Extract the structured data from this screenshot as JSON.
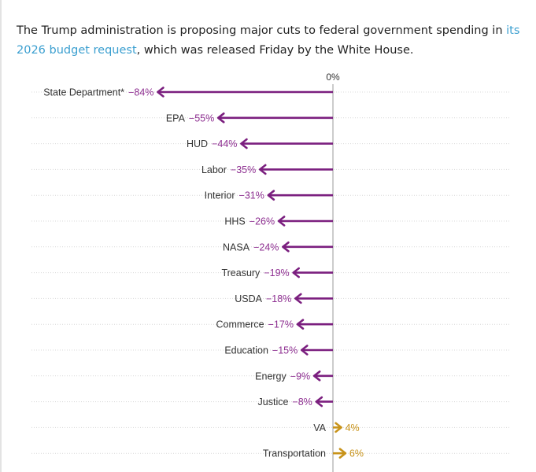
{
  "intro": {
    "text_before": "The Trump administration is proposing major cuts to federal government spending in ",
    "link_text": "its 2026 budget request",
    "text_after": ", which was released Friday by the White House."
  },
  "colors": {
    "negative": "#7b1f7f",
    "negative_label": "#8e2f91",
    "positive": "#c8931a",
    "link": "#3b9fd0",
    "gridline": "#d9d9d9",
    "zero_line": "#9a9a9a"
  },
  "chart_data": {
    "type": "bar",
    "orientation": "horizontal",
    "zero_label": "0%",
    "categories": [
      "State Department*",
      "EPA",
      "HUD",
      "Labor",
      "Interior",
      "HHS",
      "NASA",
      "Treasury",
      "USDA",
      "Commerce",
      "Education",
      "Energy",
      "Justice",
      "VA",
      "Transportation"
    ],
    "values": [
      -84,
      -55,
      -44,
      -35,
      -31,
      -26,
      -24,
      -19,
      -18,
      -17,
      -15,
      -9,
      -8,
      4,
      6
    ],
    "value_labels": [
      "−84%",
      "−55%",
      "−44%",
      "−35%",
      "−31%",
      "−26%",
      "−24%",
      "−19%",
      "−18%",
      "−17%",
      "−15%",
      "−9%",
      "−8%",
      "4%",
      "6%"
    ],
    "unit": "%",
    "grid": true,
    "marker": "arrow"
  }
}
